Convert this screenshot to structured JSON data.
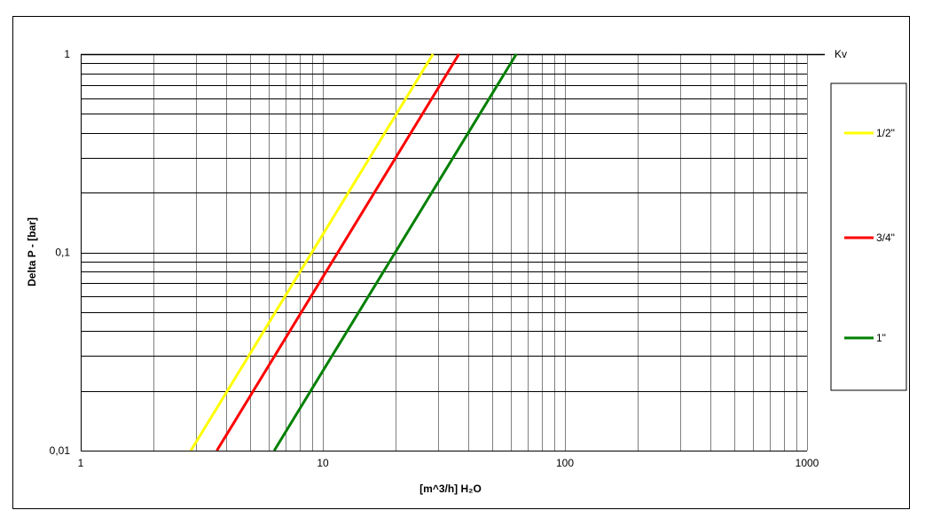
{
  "chart_data": {
    "type": "line",
    "title": "",
    "xlabel": "[m^3/h] H₂O",
    "ylabel": "Delta P - [bar]",
    "x_scale": "log",
    "y_scale": "log",
    "xlim": [
      1,
      1000
    ],
    "ylim": [
      0.01,
      1
    ],
    "grid": true,
    "legend_placement": "right",
    "x_ticks": [
      {
        "value": 1,
        "label": "1"
      },
      {
        "value": 10,
        "label": "10"
      },
      {
        "value": 100,
        "label": "100"
      },
      {
        "value": 1000,
        "label": "1000"
      }
    ],
    "y_ticks": [
      {
        "value": 0.01,
        "label": "0,01"
      },
      {
        "value": 0.1,
        "label": "0,1"
      },
      {
        "value": 1,
        "label": "1"
      }
    ],
    "kv_label": "Kv",
    "series": [
      {
        "name": "1/2\"",
        "color": "#ffff00",
        "kv": 28.5,
        "points": [
          {
            "x": 2.85,
            "y": 0.01
          },
          {
            "x": 28.5,
            "y": 1
          }
        ]
      },
      {
        "name": "3/4\"",
        "color": "#ff0000",
        "kv": 36.5,
        "points": [
          {
            "x": 3.65,
            "y": 0.01
          },
          {
            "x": 36.5,
            "y": 1
          }
        ]
      },
      {
        "name": "1\"",
        "color": "#008000",
        "kv": 63,
        "points": [
          {
            "x": 6.3,
            "y": 0.01
          },
          {
            "x": 63,
            "y": 1
          }
        ]
      }
    ]
  }
}
